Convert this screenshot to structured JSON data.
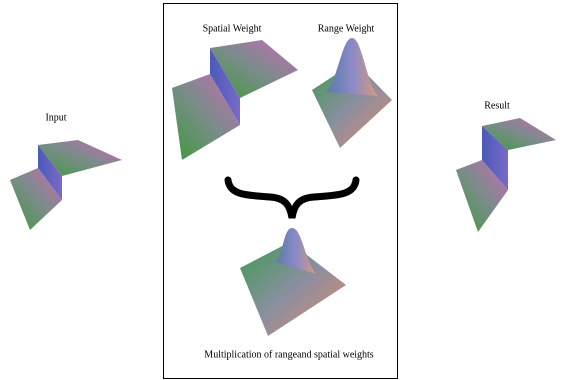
{
  "nodes": [
    {
      "label": "Input"
    },
    {
      "label": "Spatial Weight"
    },
    {
      "label": "Range Weight"
    },
    {
      "label": "Result"
    },
    {
      "label": "Multiplication of rangeand spatial weights"
    }
  ]
}
